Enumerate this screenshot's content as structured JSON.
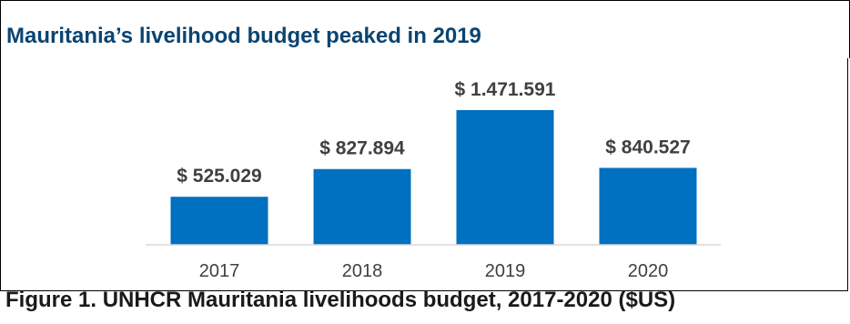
{
  "chart_data": {
    "type": "bar",
    "title": "Mauritania’s livelihood budget peaked in 2019",
    "categories": [
      "2017",
      "2018",
      "2019",
      "2020"
    ],
    "values": [
      525029,
      827894,
      1471591,
      840527
    ],
    "data_labels": [
      "$ 525.029",
      "$ 827.894",
      "$ 1.471.591",
      "$ 840.527"
    ],
    "xlabel": "",
    "ylabel": "",
    "ylim": [
      0,
      1471591
    ],
    "grid": false,
    "legend": "none",
    "bar_color": "#0070c0"
  },
  "caption": "Figure 1. UNHCR Mauritania livelihoods budget, 2017-2020 ($US)",
  "colors": {
    "title": "#0b4470",
    "axis": "#d9d9d9",
    "text": "#404040"
  }
}
